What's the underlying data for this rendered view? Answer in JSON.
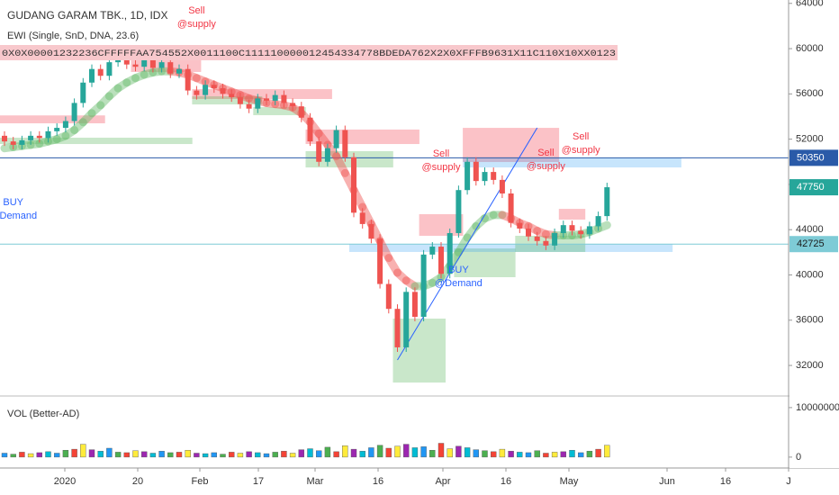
{
  "chart_data": {
    "type": "candlestick",
    "title": "GUDANG GARAM TBK., 1D, IDX",
    "indicator": "EWI (Single, SnD, DNA, 23.6)",
    "indicator_strip": "0X0X00001232236CFFFFFAA754552X0011100C111110000012454334778BDEDA762X2X0XFFFB9631X11C110X10XX0123",
    "volume_title": "VOL (Better-AD)",
    "x_labels": [
      "2020",
      "20",
      "Feb",
      "17",
      "Mar",
      "16",
      "Apr",
      "16",
      "May",
      "Jun",
      "16",
      "J"
    ],
    "up_color": "#26a69a",
    "down_color": "#ef5350",
    "open": [
      52300,
      51800,
      51500,
      51900,
      52300,
      52100,
      52700,
      53000,
      53600,
      55200,
      57000,
      58200,
      57600,
      58800,
      59200,
      58600,
      58400,
      59000,
      58300,
      58800,
      57800,
      58200,
      56300,
      55900,
      56800,
      56500,
      56000,
      55700,
      55100,
      54700,
      55600,
      55400,
      55900,
      55200,
      54900,
      53900,
      51800,
      50000,
      51200,
      52800,
      50400,
      45500,
      44500,
      43200,
      39200,
      37000,
      33600,
      38500,
      36300,
      41800,
      42500,
      40100,
      43700,
      47500,
      50000,
      48300,
      49100,
      48400,
      47200,
      44600,
      44100,
      43400,
      43000,
      42600,
      43700,
      44400,
      43900,
      43600,
      44300,
      45200
    ],
    "high": [
      52700,
      52200,
      52300,
      52700,
      52700,
      53100,
      53400,
      54000,
      55600,
      57400,
      58600,
      58600,
      59200,
      59600,
      59600,
      59000,
      59400,
      59400,
      59200,
      59200,
      58600,
      58600,
      56700,
      57200,
      57200,
      56900,
      56400,
      56100,
      55500,
      56000,
      56000,
      56300,
      56300,
      55600,
      55300,
      54300,
      52200,
      51600,
      53200,
      53200,
      50800,
      45900,
      44900,
      43600,
      39600,
      37400,
      38900,
      38900,
      42200,
      42900,
      42900,
      44100,
      47900,
      50400,
      50400,
      49500,
      49500,
      48800,
      47600,
      45000,
      44500,
      43800,
      43400,
      44100,
      44800,
      44800,
      44300,
      44700,
      45600,
      48150
    ],
    "low": [
      51400,
      51100,
      51100,
      51500,
      51700,
      51700,
      52300,
      52600,
      53200,
      54800,
      56600,
      57200,
      57200,
      58400,
      58200,
      58000,
      58000,
      57900,
      57900,
      57400,
      57400,
      55900,
      55500,
      55500,
      56100,
      55600,
      55300,
      54700,
      54300,
      54300,
      55000,
      55000,
      54800,
      54500,
      53500,
      51400,
      49600,
      49600,
      50800,
      50000,
      45100,
      44100,
      42800,
      38800,
      36600,
      33200,
      33200,
      35900,
      35900,
      41400,
      39700,
      39700,
      43300,
      47100,
      47900,
      47900,
      48000,
      46800,
      44200,
      43700,
      43000,
      42600,
      42200,
      42200,
      43300,
      43500,
      43200,
      43200,
      43900,
      44800
    ],
    "close": [
      51800,
      51500,
      51900,
      52300,
      52100,
      52700,
      53000,
      53600,
      55200,
      57000,
      58200,
      57600,
      58800,
      59200,
      58600,
      58400,
      59000,
      58300,
      58800,
      57800,
      58200,
      56300,
      55900,
      56800,
      56500,
      56000,
      55700,
      55100,
      54700,
      55600,
      55400,
      55900,
      55200,
      54900,
      53900,
      51800,
      50000,
      51200,
      52800,
      50400,
      45500,
      44500,
      43200,
      39200,
      37000,
      33600,
      38500,
      36300,
      41800,
      42500,
      40100,
      43700,
      47500,
      50000,
      48300,
      49100,
      48400,
      47200,
      44600,
      44100,
      43400,
      43000,
      42600,
      43700,
      44400,
      43900,
      43600,
      44300,
      45200,
      47750
    ],
    "ribbon": {
      "up_color": "#66bb6a",
      "down_color": "#ef5350",
      "values": [
        51200,
        51300,
        51400,
        51500,
        51600,
        51800,
        52000,
        52300,
        52800,
        53500,
        54300,
        55000,
        55800,
        56500,
        57000,
        57400,
        57700,
        57900,
        58000,
        58000,
        57900,
        57700,
        57400,
        57100,
        56800,
        56500,
        56200,
        55900,
        55600,
        55400,
        55200,
        55100,
        55000,
        54800,
        54300,
        53500,
        52500,
        51500,
        50500,
        49000,
        47500,
        46000,
        44500,
        43000,
        41500,
        40200,
        39500,
        39000,
        39000,
        39300,
        39800,
        40800,
        42000,
        43300,
        44300,
        45000,
        45300,
        45300,
        45000,
        44600,
        44300,
        43900,
        43600,
        43500,
        43500,
        43500,
        43600,
        43800,
        44100,
        44400
      ]
    },
    "ylim": [
      29300,
      64300
    ],
    "yticks": [
      32000,
      36000,
      40000,
      44000,
      48000,
      52000,
      56000,
      60000,
      64000
    ],
    "zones": [
      {
        "start": 0,
        "end": 11,
        "bottom": 53400,
        "top": 54100,
        "color": "rgba(242,54,69,0.3)"
      },
      {
        "start": 0,
        "end": 21,
        "bottom": 51570,
        "top": 52130,
        "color": "rgba(76,175,80,0.3)"
      },
      {
        "start": 15,
        "end": 22,
        "bottom": 57940,
        "top": 58970,
        "color": "rgba(242,54,69,0.3)"
      },
      {
        "start": 22,
        "end": 37,
        "bottom": 55550,
        "top": 56420,
        "color": "rgba(242,54,69,0.3)"
      },
      {
        "start": 22,
        "end": 29,
        "bottom": 55070,
        "top": 55790,
        "color": "rgba(76,175,80,0.3)"
      },
      {
        "start": 29,
        "end": 34,
        "bottom": 54120,
        "top": 54830,
        "color": "rgba(76,175,80,0.3)"
      },
      {
        "start": 35,
        "end": 47,
        "bottom": 51570,
        "top": 52850,
        "color": "rgba(242,54,69,0.3)"
      },
      {
        "start": 35,
        "end": 44,
        "bottom": 49500,
        "top": 50940,
        "color": "rgba(76,175,80,0.3)"
      },
      {
        "start": 48,
        "end": 52,
        "bottom": 43460,
        "top": 45370,
        "color": "rgba(242,54,69,0.3)"
      },
      {
        "start": 53,
        "end": 63,
        "bottom": 49980,
        "top": 53000,
        "color": "rgba(242,54,69,0.3)"
      },
      {
        "start": 53,
        "end": 77,
        "bottom": 49500,
        "top": 50380,
        "color": "rgba(33,150,243,0.25)"
      },
      {
        "start": 52,
        "end": 58,
        "bottom": 39800,
        "top": 42340,
        "color": "rgba(76,175,80,0.3)"
      },
      {
        "start": 45,
        "end": 50,
        "bottom": 30490,
        "top": 36140,
        "color": "rgba(76,175,80,0.3)"
      },
      {
        "start": 40,
        "end": 76,
        "bottom": 42030,
        "top": 42740,
        "color": "rgba(33,150,243,0.25)"
      },
      {
        "start": 64,
        "end": 66,
        "bottom": 44890,
        "top": 45840,
        "color": "rgba(242,54,69,0.3)"
      },
      {
        "start": 59,
        "end": 66,
        "bottom": 42030,
        "top": 43460,
        "color": "rgba(76,175,80,0.3)"
      }
    ],
    "trendline": {
      "from": [
        45,
        32480
      ],
      "to": [
        61,
        53000
      ],
      "color": "#2962ff"
    },
    "price_lines": [
      {
        "value": 50350,
        "color": "#2a5aa8",
        "text_color": "#ffffff"
      },
      {
        "value": 47750,
        "color": "#26a69a",
        "text_color": "#ffffff"
      },
      {
        "value": 42725,
        "color": "#7ecbd6",
        "text_color": "#1a1a1a"
      }
    ],
    "annotations": [
      {
        "lines": [
          "Sell",
          "@supply"
        ],
        "index": 22,
        "price": 63350,
        "color": "#f23645"
      },
      {
        "lines": [
          "Sell",
          "@supply"
        ],
        "index": 50,
        "price": 50700,
        "color": "#f23645"
      },
      {
        "lines": [
          "Sell",
          "@supply"
        ],
        "index": 62,
        "price": 50780,
        "color": "#f23645"
      },
      {
        "lines": [
          "Sell",
          "@supply"
        ],
        "index": 66,
        "price": 52210,
        "color": "#f23645"
      },
      {
        "lines": [
          "BUY",
          "@Demand"
        ],
        "index": 1,
        "price": 46400,
        "color": "#2962ff"
      },
      {
        "lines": [
          "BUY",
          "@Demand"
        ],
        "index": 52,
        "price": 40430,
        "color": "#2962ff"
      }
    ],
    "volume": {
      "ylim": [
        -2200000,
        11800000
      ],
      "yticks": [
        0,
        10000000
      ],
      "palette": [
        "#2196f3",
        "#4caf50",
        "#f44336",
        "#ffeb3b",
        "#9c27b0",
        "#00bcd4"
      ],
      "values": [
        800000,
        600000,
        1000000,
        700000,
        900000,
        1100000,
        800000,
        1400000,
        1600000,
        2600000,
        1500000,
        1200000,
        1800000,
        1000000,
        900000,
        1300000,
        1100000,
        800000,
        1200000,
        900000,
        1000000,
        1400000,
        800000,
        700000,
        900000,
        600000,
        1000000,
        800000,
        1100000,
        900000,
        700000,
        1000000,
        1200000,
        800000,
        1500000,
        1700000,
        1300000,
        2000000,
        1100000,
        2300000,
        1600000,
        1200000,
        1900000,
        2400000,
        1800000,
        2200000,
        2600000,
        1900000,
        2100000,
        1400000,
        2800000,
        1700000,
        2200000,
        1900000,
        1500000,
        1300000,
        1100000,
        1600000,
        1200000,
        1000000,
        900000,
        1300000,
        800000,
        1000000,
        1100000,
        1400000,
        900000,
        1200000,
        1600000,
        2400000
      ]
    }
  }
}
